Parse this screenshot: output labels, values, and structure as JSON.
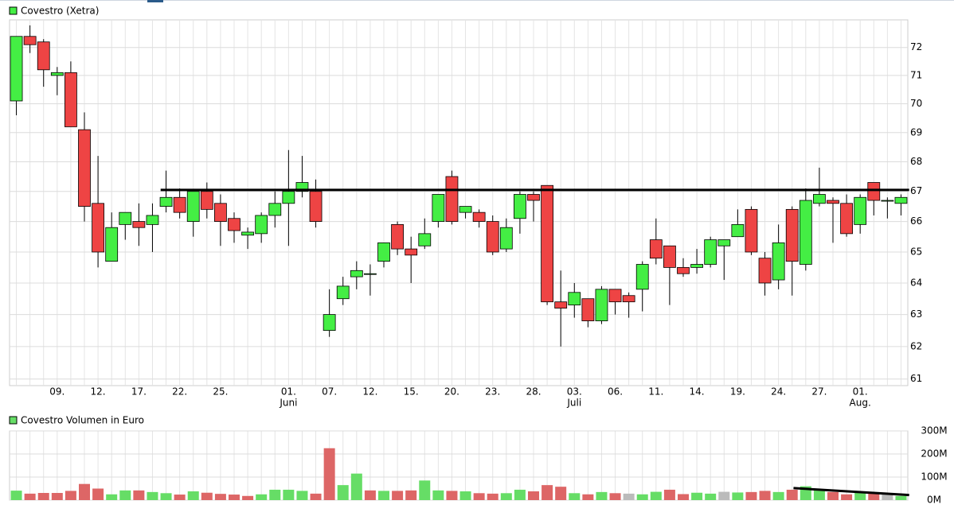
{
  "chart_data": [
    {
      "type": "candlestick",
      "title": "Covestro (Xetra)",
      "log_scale": true,
      "grid": true,
      "up_color": "#44ee44",
      "down_color": "#ee4444",
      "categories": [
        null,
        null,
        null,
        "09.",
        null,
        null,
        "12.",
        null,
        null,
        "17.",
        null,
        null,
        "22.",
        null,
        null,
        "25.",
        null,
        null,
        null,
        null,
        "01.",
        null,
        null,
        "07.",
        null,
        null,
        "12.",
        null,
        null,
        "15.",
        null,
        null,
        "20.",
        null,
        null,
        "23.",
        null,
        null,
        "28.",
        null,
        null,
        "03.",
        null,
        null,
        "06.",
        null,
        null,
        "11.",
        null,
        null,
        "14.",
        null,
        null,
        "19.",
        null,
        null,
        "24.",
        null,
        null,
        "27.",
        null,
        null,
        "01.",
        null,
        null,
        null
      ],
      "month_labels": [
        null,
        null,
        null,
        null,
        null,
        null,
        null,
        null,
        null,
        null,
        null,
        null,
        null,
        null,
        null,
        null,
        null,
        null,
        null,
        null,
        "Juni",
        null,
        null,
        null,
        null,
        null,
        null,
        null,
        null,
        null,
        null,
        null,
        null,
        null,
        null,
        null,
        null,
        null,
        null,
        null,
        null,
        "Juli",
        null,
        null,
        null,
        null,
        null,
        null,
        null,
        null,
        null,
        null,
        null,
        null,
        null,
        null,
        null,
        null,
        null,
        null,
        null,
        null,
        "Aug.",
        null,
        null,
        null
      ],
      "open": [
        70.1,
        72.4,
        72.2,
        71.0,
        71.1,
        69.1,
        66.6,
        64.7,
        65.9,
        66.0,
        65.9,
        66.5,
        66.8,
        66.0,
        67.0,
        66.6,
        66.1,
        65.55,
        65.6,
        66.2,
        66.6,
        67.0,
        67.0,
        62.5,
        63.5,
        64.2,
        64.3,
        64.7,
        65.9,
        65.1,
        65.2,
        66.0,
        67.5,
        66.3,
        66.3,
        66.0,
        65.1,
        66.1,
        66.9,
        67.2,
        63.4,
        63.3,
        63.5,
        62.8,
        63.8,
        63.6,
        63.8,
        65.4,
        65.2,
        64.5,
        64.5,
        64.6,
        65.2,
        65.5,
        66.4,
        64.8,
        64.1,
        66.4,
        64.6,
        66.6,
        66.7,
        66.6,
        65.9,
        67.3,
        66.7,
        66.6
      ],
      "high": [
        72.4,
        72.8,
        72.3,
        71.3,
        71.5,
        69.7,
        68.2,
        66.3,
        66.3,
        66.6,
        66.6,
        67.7,
        67.1,
        67.0,
        67.3,
        66.9,
        66.3,
        65.8,
        66.3,
        67.0,
        68.4,
        68.2,
        67.4,
        63.8,
        64.2,
        64.7,
        64.6,
        65.3,
        66.0,
        65.5,
        66.1,
        66.9,
        67.7,
        66.5,
        66.4,
        66.2,
        66.1,
        67.0,
        67.0,
        67.2,
        64.4,
        64.0,
        63.5,
        63.9,
        63.8,
        63.7,
        64.7,
        66.1,
        65.2,
        64.8,
        65.1,
        65.5,
        65.4,
        66.4,
        66.5,
        65.0,
        65.9,
        66.5,
        67.1,
        67.8,
        66.8,
        66.9,
        66.9,
        67.3,
        66.8,
        66.9
      ],
      "low": [
        69.6,
        71.8,
        70.6,
        70.3,
        69.2,
        66.0,
        64.5,
        64.7,
        65.4,
        65.2,
        65.0,
        66.3,
        66.1,
        65.5,
        66.1,
        65.2,
        65.3,
        65.1,
        65.3,
        65.8,
        65.2,
        66.8,
        65.8,
        62.3,
        63.3,
        63.8,
        63.6,
        64.5,
        64.9,
        64.0,
        65.1,
        65.8,
        65.9,
        66.1,
        65.8,
        64.9,
        65.0,
        65.6,
        66.0,
        63.3,
        62.0,
        62.9,
        62.6,
        62.7,
        63.0,
        62.9,
        63.1,
        64.6,
        63.3,
        64.2,
        64.3,
        64.5,
        64.1,
        65.5,
        64.9,
        63.6,
        63.8,
        63.6,
        64.4,
        66.5,
        65.3,
        65.5,
        65.6,
        66.2,
        66.1,
        66.2
      ],
      "close": [
        72.4,
        72.1,
        71.2,
        71.1,
        69.2,
        66.5,
        65.0,
        65.8,
        66.3,
        65.8,
        66.2,
        66.8,
        66.3,
        67.0,
        66.4,
        66.0,
        65.7,
        65.65,
        66.2,
        66.6,
        67.0,
        67.3,
        66.0,
        63.0,
        63.9,
        64.4,
        64.3,
        65.3,
        65.1,
        64.9,
        65.6,
        66.9,
        66.0,
        66.5,
        66.0,
        65.0,
        65.8,
        66.9,
        66.7,
        63.4,
        63.2,
        63.7,
        62.8,
        63.8,
        63.4,
        63.4,
        64.6,
        64.8,
        64.5,
        64.3,
        64.6,
        65.4,
        65.4,
        65.9,
        65.0,
        64.0,
        65.3,
        64.7,
        66.7,
        66.9,
        66.6,
        65.6,
        66.8,
        66.7,
        66.7,
        66.8
      ],
      "ylim": [
        60.8,
        73.0
      ],
      "yticks": [
        61,
        62,
        63,
        64,
        65,
        66,
        67,
        68,
        69,
        70,
        71,
        72
      ],
      "trendlines": [
        {
          "x": [
            10.6,
            65.6
          ],
          "y": [
            67.05,
            67.05
          ]
        }
      ]
    },
    {
      "type": "volume",
      "title": "Covestro Volumen in Euro",
      "grid": true,
      "up_color": "#66dd66",
      "down_color": "#dd6666",
      "flat_color": "#bbbbbb",
      "values": [
        41000000,
        28000000,
        31000000,
        31000000,
        40000000,
        70000000,
        50000000,
        25000000,
        42000000,
        42000000,
        35000000,
        30000000,
        24000000,
        38000000,
        32000000,
        27000000,
        24000000,
        18000000,
        25000000,
        45000000,
        45000000,
        40000000,
        28000000,
        225000000,
        65000000,
        115000000,
        42000000,
        40000000,
        40000000,
        42000000,
        85000000,
        42000000,
        40000000,
        38000000,
        30000000,
        28000000,
        30000000,
        45000000,
        38000000,
        65000000,
        58000000,
        30000000,
        25000000,
        35000000,
        30000000,
        28000000,
        25000000,
        36000000,
        45000000,
        26000000,
        32000000,
        28000000,
        36000000,
        33000000,
        35000000,
        40000000,
        35000000,
        45000000,
        60000000,
        48000000,
        35000000,
        25000000,
        35000000,
        28000000,
        25000000,
        18000000
      ],
      "ylim": [
        0,
        300000000
      ],
      "yticks": [
        {
          "value": 0,
          "label": "0M"
        },
        {
          "value": 100000000,
          "label": "100M"
        },
        {
          "value": 200000000,
          "label": "200M"
        },
        {
          "value": 300000000,
          "label": "300M"
        }
      ],
      "trendlines": [
        {
          "x": [
            57.1,
            65.6
          ],
          "y": [
            52000000,
            22000000
          ]
        }
      ]
    }
  ]
}
